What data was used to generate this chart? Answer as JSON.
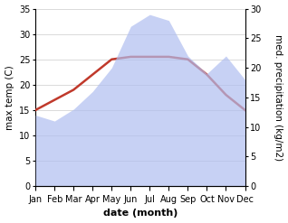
{
  "months": [
    "Jan",
    "Feb",
    "Mar",
    "Apr",
    "May",
    "Jun",
    "Jul",
    "Aug",
    "Sep",
    "Oct",
    "Nov",
    "Dec"
  ],
  "temp": [
    15,
    17,
    19,
    22,
    25,
    25.5,
    25.5,
    25.5,
    25,
    22,
    18,
    15
  ],
  "precip": [
    12,
    11,
    13,
    16,
    20,
    27,
    29,
    28,
    22,
    19,
    22,
    18
  ],
  "temp_color": "#c0392b",
  "precip_color": "#b0bef0",
  "background_color": "#ffffff",
  "xlabel": "date (month)",
  "ylabel_left": "max temp (C)",
  "ylabel_right": "med. precipitation (kg/m2)",
  "ylim_left": [
    0,
    35
  ],
  "ylim_right": [
    0,
    30
  ],
  "yticks_left": [
    0,
    5,
    10,
    15,
    20,
    25,
    30,
    35
  ],
  "yticks_right": [
    0,
    5,
    10,
    15,
    20,
    25,
    30
  ],
  "temp_linewidth": 1.8,
  "xlabel_fontsize": 8,
  "ylabel_fontsize": 7.5,
  "tick_fontsize": 7
}
